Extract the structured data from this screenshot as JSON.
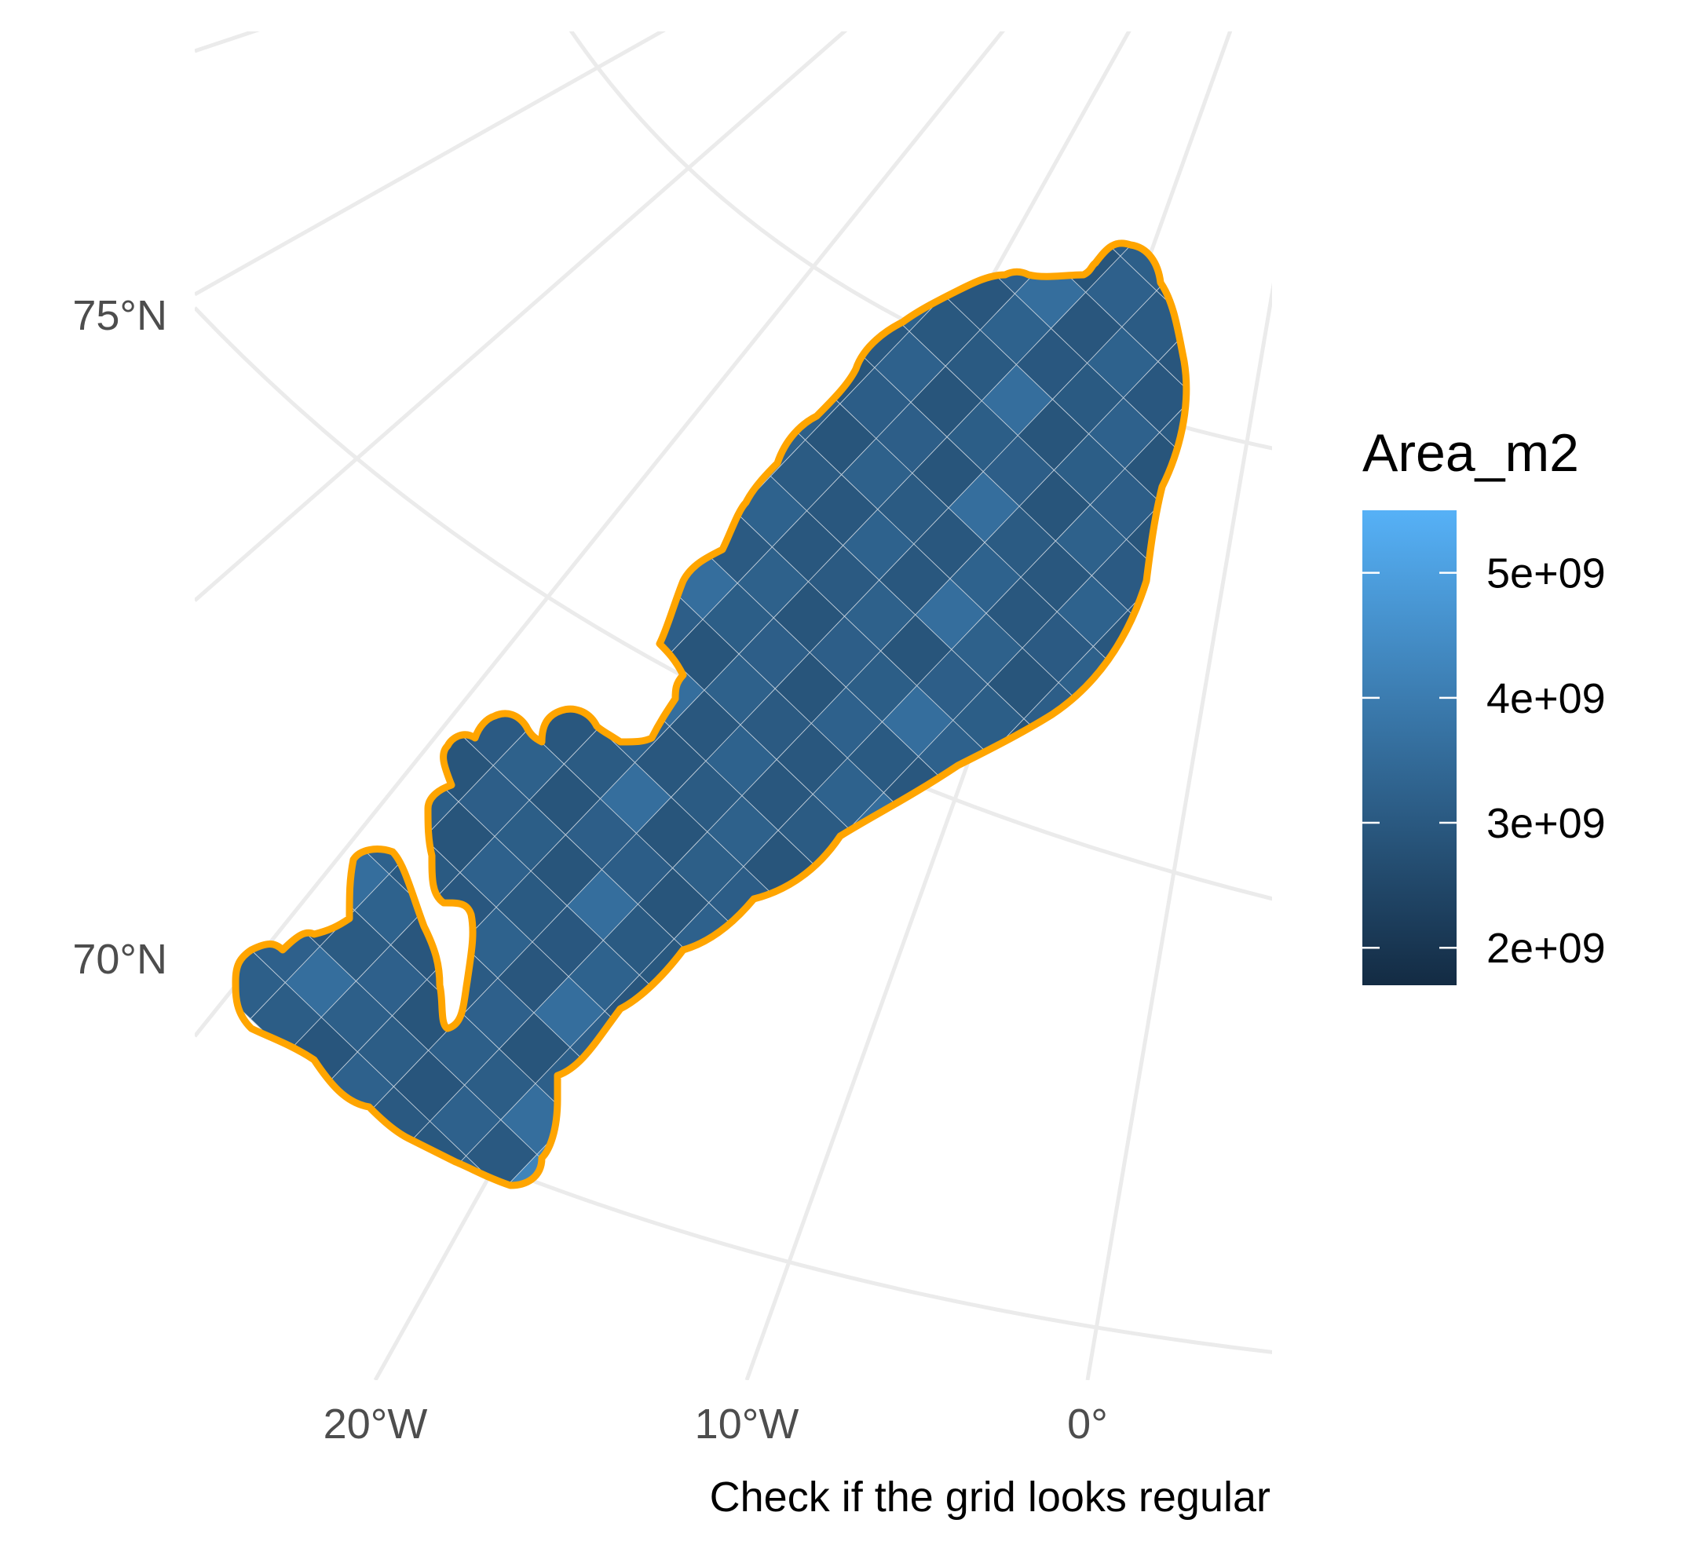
{
  "map": {
    "caption": "Check if the grid looks regular",
    "lat_labels": [
      "75°N",
      "70°N"
    ],
    "lon_labels": [
      "20°W",
      "10°W",
      "0°"
    ],
    "graticule_color": "#ebebeb",
    "outline_color": "#FFA500",
    "cell_border_color": "#c8d3de"
  },
  "legend": {
    "title": "Area_m2",
    "ticks": [
      "5e+09",
      "4e+09",
      "3e+09",
      "2e+09"
    ],
    "tick_values": [
      5000000000,
      4000000000,
      3000000000,
      2000000000
    ],
    "range": [
      1700000000,
      5500000000
    ],
    "color_low": "#132B43",
    "color_high": "#56B1F7"
  }
}
